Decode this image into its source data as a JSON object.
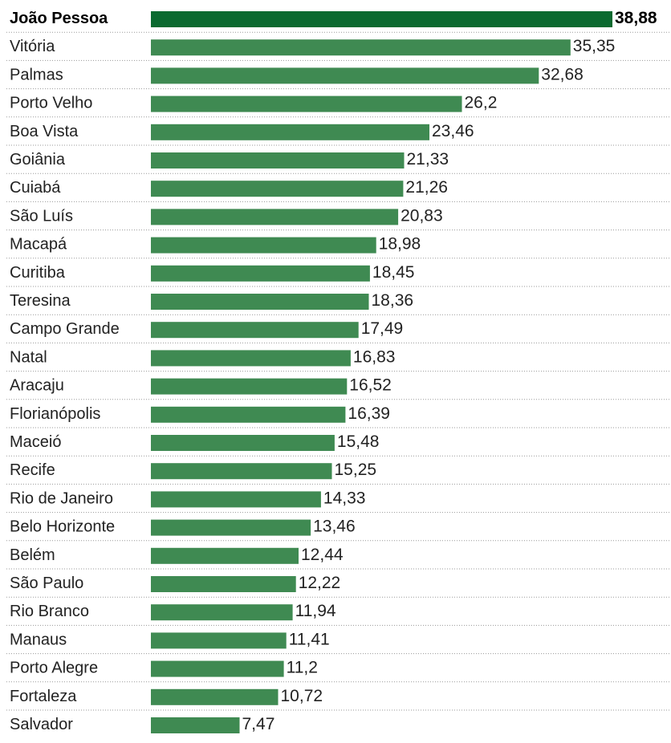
{
  "chart_data": {
    "type": "bar",
    "orientation": "horizontal",
    "categories": [
      "João Pessoa",
      "Vitória",
      "Palmas",
      "Porto Velho",
      "Boa Vista",
      "Goiânia",
      "Cuiabá",
      "São Luís",
      "Macapá",
      "Curitiba",
      "Teresina",
      "Campo Grande",
      "Natal",
      "Aracaju",
      "Florianópolis",
      "Maceió",
      "Recife",
      "Rio de Janeiro",
      "Belo Horizonte",
      "Belém",
      "São Paulo",
      "Rio Branco",
      "Manaus",
      "Porto Alegre",
      "Fortaleza",
      "Salvador"
    ],
    "values": [
      38.88,
      35.35,
      32.68,
      26.2,
      23.46,
      21.33,
      21.26,
      20.83,
      18.98,
      18.45,
      18.36,
      17.49,
      16.83,
      16.52,
      16.39,
      15.48,
      15.25,
      14.33,
      13.46,
      12.44,
      12.22,
      11.94,
      11.41,
      11.2,
      10.72,
      7.47
    ],
    "value_labels": [
      "38,88",
      "35,35",
      "32,68",
      "26,2",
      "23,46",
      "21,33",
      "21,26",
      "20,83",
      "18,98",
      "18,45",
      "18,36",
      "17,49",
      "16,83",
      "16,52",
      "16,39",
      "15,48",
      "15,25",
      "14,33",
      "13,46",
      "12,44",
      "12,22",
      "11,94",
      "11,41",
      "11,2",
      "10,72",
      "7,47"
    ],
    "highlight_index": 0,
    "colors": {
      "bar": "#3f8a52",
      "highlight": "#0b6a30"
    },
    "xlim": [
      0,
      38.88
    ],
    "grid": false,
    "legend": "none"
  }
}
